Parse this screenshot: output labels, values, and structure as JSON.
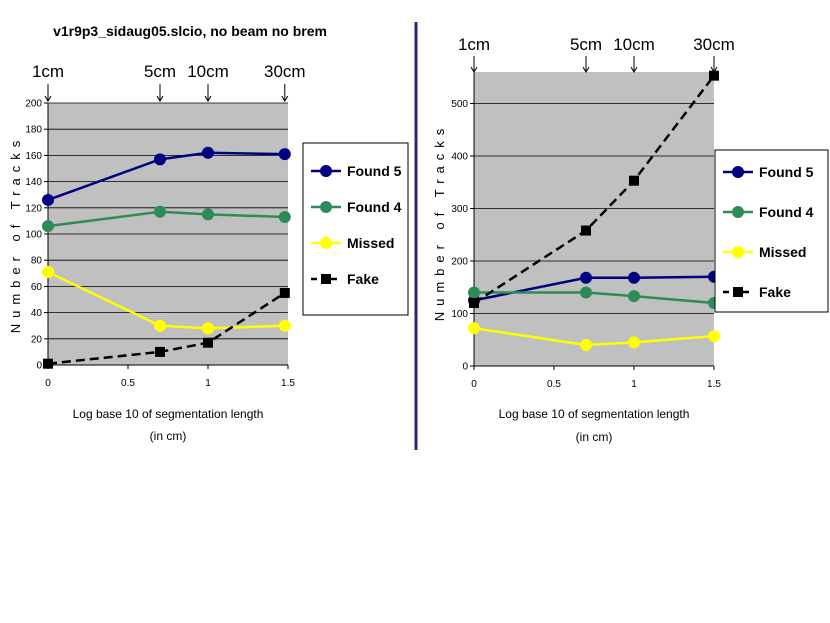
{
  "chart_data": [
    {
      "type": "line",
      "title": "v1r9p3_sidaug05.slcio, no beam no brem",
      "xlabel": "Log base 10 of segmentation length",
      "xlabel_sub": "(in cm)",
      "ylabel": "Number of Tracks",
      "xlim": [
        0,
        1.5
      ],
      "ylim": [
        0,
        200
      ],
      "xticks": [
        "0",
        "0.5",
        "1",
        "1.5"
      ],
      "yticks": [
        "0",
        "20",
        "40",
        "60",
        "80",
        "100",
        "120",
        "140",
        "160",
        "180",
        "200"
      ],
      "x": [
        0,
        0.7,
        1,
        1.48
      ],
      "segment_labels": [
        "1cm",
        "5cm",
        "10cm",
        "30cm"
      ],
      "segment_positions": [
        0,
        0.7,
        1,
        1.48
      ],
      "series": [
        {
          "name": "Found 5",
          "values": [
            126,
            157,
            162,
            161
          ],
          "color": "#000080",
          "marker": "circle",
          "dash": false
        },
        {
          "name": "Found 4",
          "values": [
            106,
            117,
            115,
            113
          ],
          "color": "#2e8b57",
          "marker": "circle",
          "dash": false
        },
        {
          "name": "Missed",
          "values": [
            71,
            30,
            28,
            30
          ],
          "color": "#ffff00",
          "marker": "circle",
          "dash": false
        },
        {
          "name": "Fake",
          "values": [
            1,
            10,
            17,
            55
          ],
          "color": "#000000",
          "marker": "square",
          "dash": true
        }
      ]
    },
    {
      "type": "line",
      "title": "",
      "xlabel": "Log base 10 of segmentation length",
      "xlabel_sub": "(in cm)",
      "ylabel": "Number of Tracks",
      "xlim": [
        0,
        1.5
      ],
      "ylim": [
        0,
        560
      ],
      "xticks": [
        "0",
        "0.5",
        "1",
        "1.5"
      ],
      "yticks": [
        "0",
        "100",
        "200",
        "300",
        "400",
        "500"
      ],
      "x": [
        0,
        0.7,
        1,
        1.5
      ],
      "segment_labels": [
        "1cm",
        "5cm",
        "10cm",
        "30cm"
      ],
      "segment_positions": [
        0,
        0.7,
        1,
        1.5
      ],
      "series": [
        {
          "name": "Found 5",
          "values": [
            125,
            168,
            168,
            170
          ],
          "color": "#000080",
          "marker": "circle",
          "dash": false
        },
        {
          "name": "Found 4",
          "values": [
            140,
            140,
            133,
            120
          ],
          "color": "#2e8b57",
          "marker": "circle",
          "dash": false
        },
        {
          "name": "Missed",
          "values": [
            72,
            40,
            45,
            57
          ],
          "color": "#ffff00",
          "marker": "circle",
          "dash": false
        },
        {
          "name": "Fake",
          "values": [
            120,
            258,
            353,
            553
          ],
          "color": "#000000",
          "marker": "square",
          "dash": true
        }
      ]
    }
  ]
}
